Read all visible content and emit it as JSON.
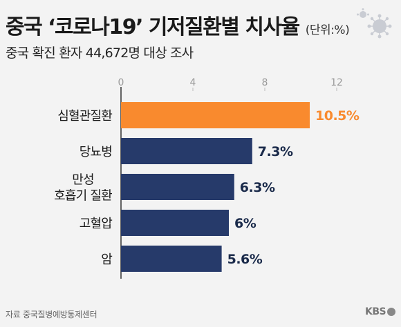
{
  "header": {
    "title": "중국 ‘코로나19’ 기저질환별 치사율",
    "unit": "(단위:%)",
    "subtitle": "중국 확진 환자 44,672명 대상 조사"
  },
  "footer": {
    "source": "자료 중국질병예방통제센터",
    "logo": "KBS"
  },
  "colors": {
    "highlight": "#f98a2e",
    "bar": "#263a6a",
    "axis": "#333333",
    "tick": "#999999"
  },
  "chart_data": {
    "type": "bar",
    "orientation": "horizontal",
    "categories": [
      "심혈관질환",
      "당뇨병",
      "만성\n호흡기 질환",
      "고혈압",
      "암"
    ],
    "values": [
      10.5,
      7.3,
      6.3,
      6,
      5.6
    ],
    "data_labels": [
      "10.5%",
      "7.3%",
      "6.3%",
      "6%",
      "5.6%"
    ],
    "highlight_index": 0,
    "xlim": [
      0,
      12
    ],
    "xticks": [
      0,
      4,
      8,
      12
    ],
    "grid": false
  }
}
